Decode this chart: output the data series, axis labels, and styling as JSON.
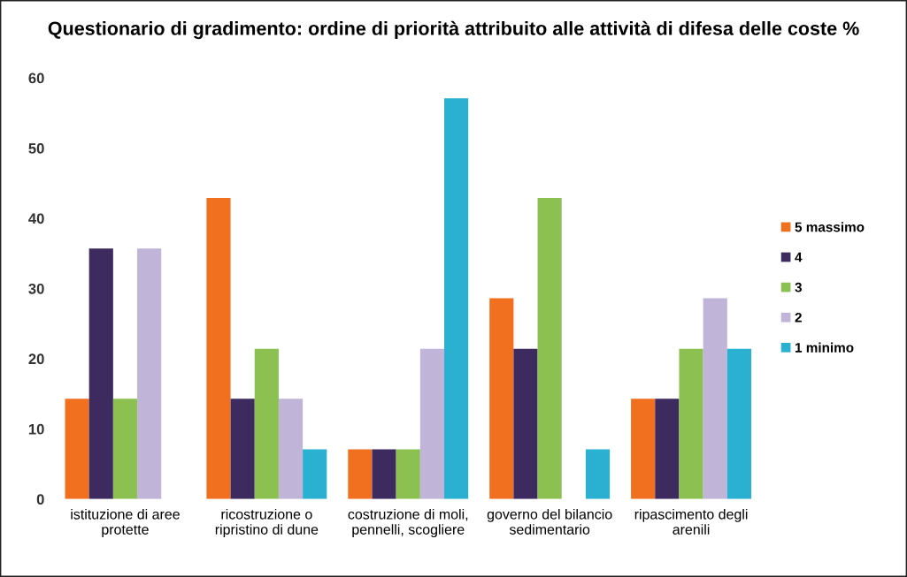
{
  "chart_data": {
    "type": "bar",
    "title": "Questionario di gradimento: ordine di priorità attribuito alle attività di difesa delle coste %",
    "categories": [
      "istituzione di aree\nprotette",
      "ricostruzione o\nripristino di dune",
      "costruzione di moli,\npennelli, scogliere",
      "governo del bilancio\nsedimentario",
      "ripascimento degli\narenili"
    ],
    "series": [
      {
        "name": "5 massimo",
        "color": "#f07020",
        "values": [
          14.3,
          42.9,
          7.1,
          28.6,
          14.3
        ]
      },
      {
        "name": "4",
        "color": "#3d2a5e",
        "values": [
          35.7,
          14.3,
          7.1,
          21.4,
          14.3
        ]
      },
      {
        "name": "3",
        "color": "#8cc152",
        "values": [
          14.3,
          21.4,
          7.1,
          42.9,
          21.4
        ]
      },
      {
        "name": "2",
        "color": "#c0b4d8",
        "values": [
          35.7,
          14.3,
          21.4,
          0,
          28.6
        ]
      },
      {
        "name": "1 minimo",
        "color": "#2ab0d0",
        "values": [
          0,
          7.1,
          57.1,
          7.1,
          21.4
        ]
      }
    ],
    "ylim": [
      0,
      60
    ],
    "yticks": [
      0,
      10,
      20,
      30,
      40,
      50,
      60
    ],
    "grid": false,
    "legend": "right"
  }
}
